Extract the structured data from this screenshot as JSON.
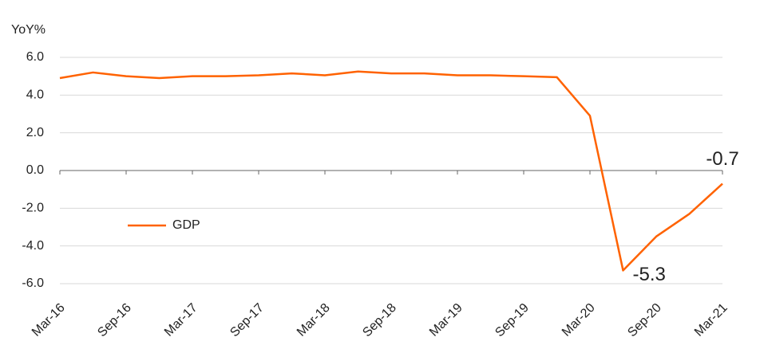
{
  "chart_data": {
    "type": "line",
    "y_axis_label": "YoY%",
    "categories": [
      "Mar-16",
      null,
      "Sep-16",
      null,
      "Mar-17",
      null,
      "Sep-17",
      null,
      "Mar-18",
      null,
      "Sep-18",
      null,
      "Mar-19",
      null,
      "Sep-19",
      null,
      "Mar-20",
      null,
      "Sep-20",
      null,
      "Mar-21"
    ],
    "series": [
      {
        "name": "GDP",
        "color": "#ff6200",
        "values": [
          4.9,
          5.2,
          5.0,
          4.9,
          5.0,
          5.0,
          5.05,
          5.15,
          5.05,
          5.25,
          5.15,
          5.15,
          5.05,
          5.05,
          5.0,
          4.95,
          2.9,
          -5.3,
          -3.5,
          -2.3,
          -0.7
        ]
      }
    ],
    "ylim": [
      -6,
      6
    ],
    "yticks": [
      {
        "value": -6,
        "label": "-6.0"
      },
      {
        "value": -4,
        "label": "-4.0"
      },
      {
        "value": -2,
        "label": "-2.0"
      },
      {
        "value": 0,
        "label": "0.0"
      },
      {
        "value": 2,
        "label": "2.0"
      },
      {
        "value": 4,
        "label": "4.0"
      },
      {
        "value": 6,
        "label": "6.0"
      }
    ],
    "grid": true,
    "labeled_points": [
      17,
      20
    ]
  }
}
